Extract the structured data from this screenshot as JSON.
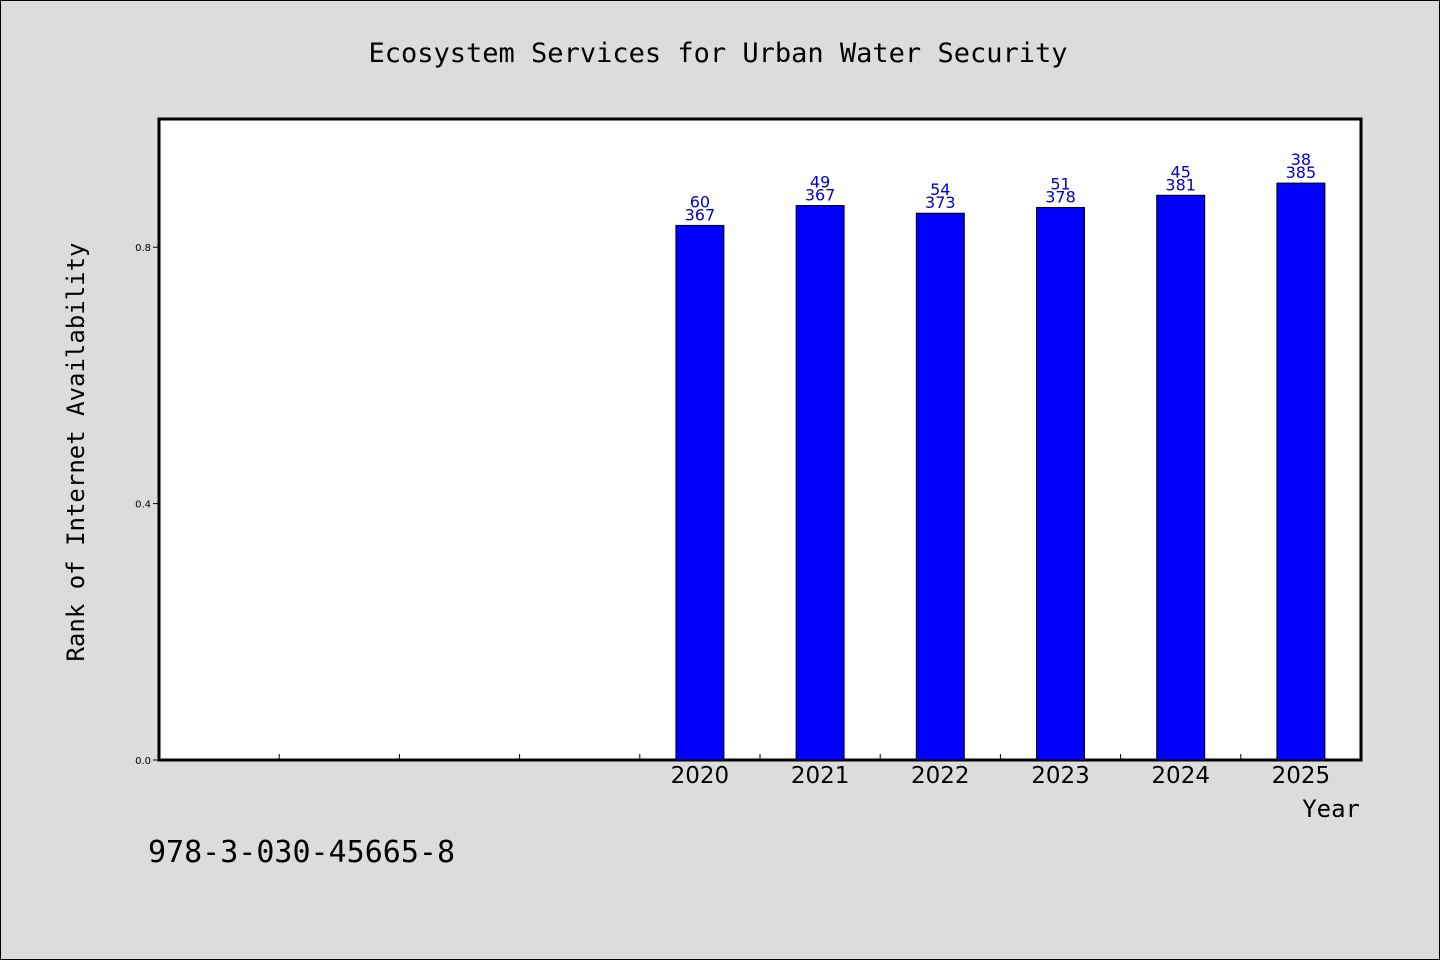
{
  "chart_data": {
    "type": "bar",
    "title": "Ecosystem Services for Urban Water Security",
    "xlabel": "Year",
    "ylabel": "Rank of Internet Availability",
    "categories": [
      "2020",
      "2021",
      "2022",
      "2023",
      "2024",
      "2025"
    ],
    "series": [
      {
        "values": [
          0.834,
          0.865,
          0.853,
          0.862,
          0.881,
          0.9
        ],
        "label_top": [
          "60",
          "49",
          "54",
          "51",
          "45",
          "38"
        ],
        "label_bottom": [
          "367",
          "367",
          "373",
          "378",
          "381",
          "385"
        ]
      }
    ],
    "yticks": [
      "0.0",
      "0.4",
      "0.8"
    ],
    "ylim": [
      0,
      1.0
    ],
    "grid": false,
    "legend": "none",
    "bar_color": "#0000ff",
    "label_color": "#0000cc"
  },
  "footer": {
    "isbn": "978-3-030-45665-8"
  }
}
